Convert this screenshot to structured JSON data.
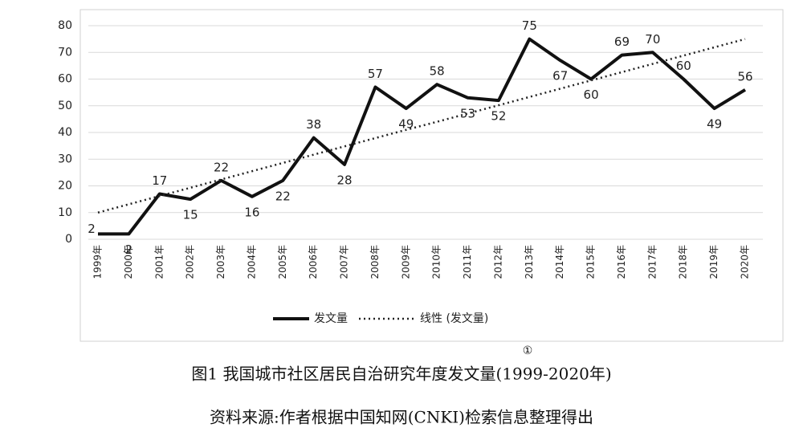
{
  "chart_data": {
    "type": "line",
    "categories": [
      "1999年",
      "2000年",
      "2001年",
      "2002年",
      "2003年",
      "2004年",
      "2005年",
      "2006年",
      "2007年",
      "2008年",
      "2009年",
      "2010年",
      "2011年",
      "2012年",
      "2013年",
      "2014年",
      "2015年",
      "2016年",
      "2017年",
      "2018年",
      "2019年",
      "2020年"
    ],
    "series": [
      {
        "name": "发文量",
        "color": "#111111",
        "style": "solid",
        "values": [
          2,
          2,
          17,
          15,
          22,
          16,
          22,
          38,
          28,
          57,
          49,
          58,
          53,
          52,
          75,
          67,
          60,
          69,
          70,
          60,
          49,
          56
        ]
      },
      {
        "name": "线性 (发文量)",
        "color": "#222222",
        "style": "dotted",
        "values": [
          10,
          13.1,
          16.2,
          19.3,
          22.4,
          25.5,
          28.6,
          31.7,
          34.8,
          37.9,
          41.0,
          44.0,
          47.1,
          50.2,
          53.3,
          56.4,
          59.5,
          62.6,
          65.7,
          68.8,
          71.9,
          75
        ]
      }
    ],
    "ylim": [
      0,
      80
    ],
    "yticks": [
      0,
      10,
      20,
      30,
      40,
      50,
      60,
      70,
      80
    ],
    "grid": true,
    "legend": "bottom",
    "caption": "图1 我国城市社区居民自治研究年度发文量(1999-2020年)",
    "footnote_mark": "①",
    "source": "资料来源:作者根据中国知网(CNKI)检索信息整理得出"
  }
}
